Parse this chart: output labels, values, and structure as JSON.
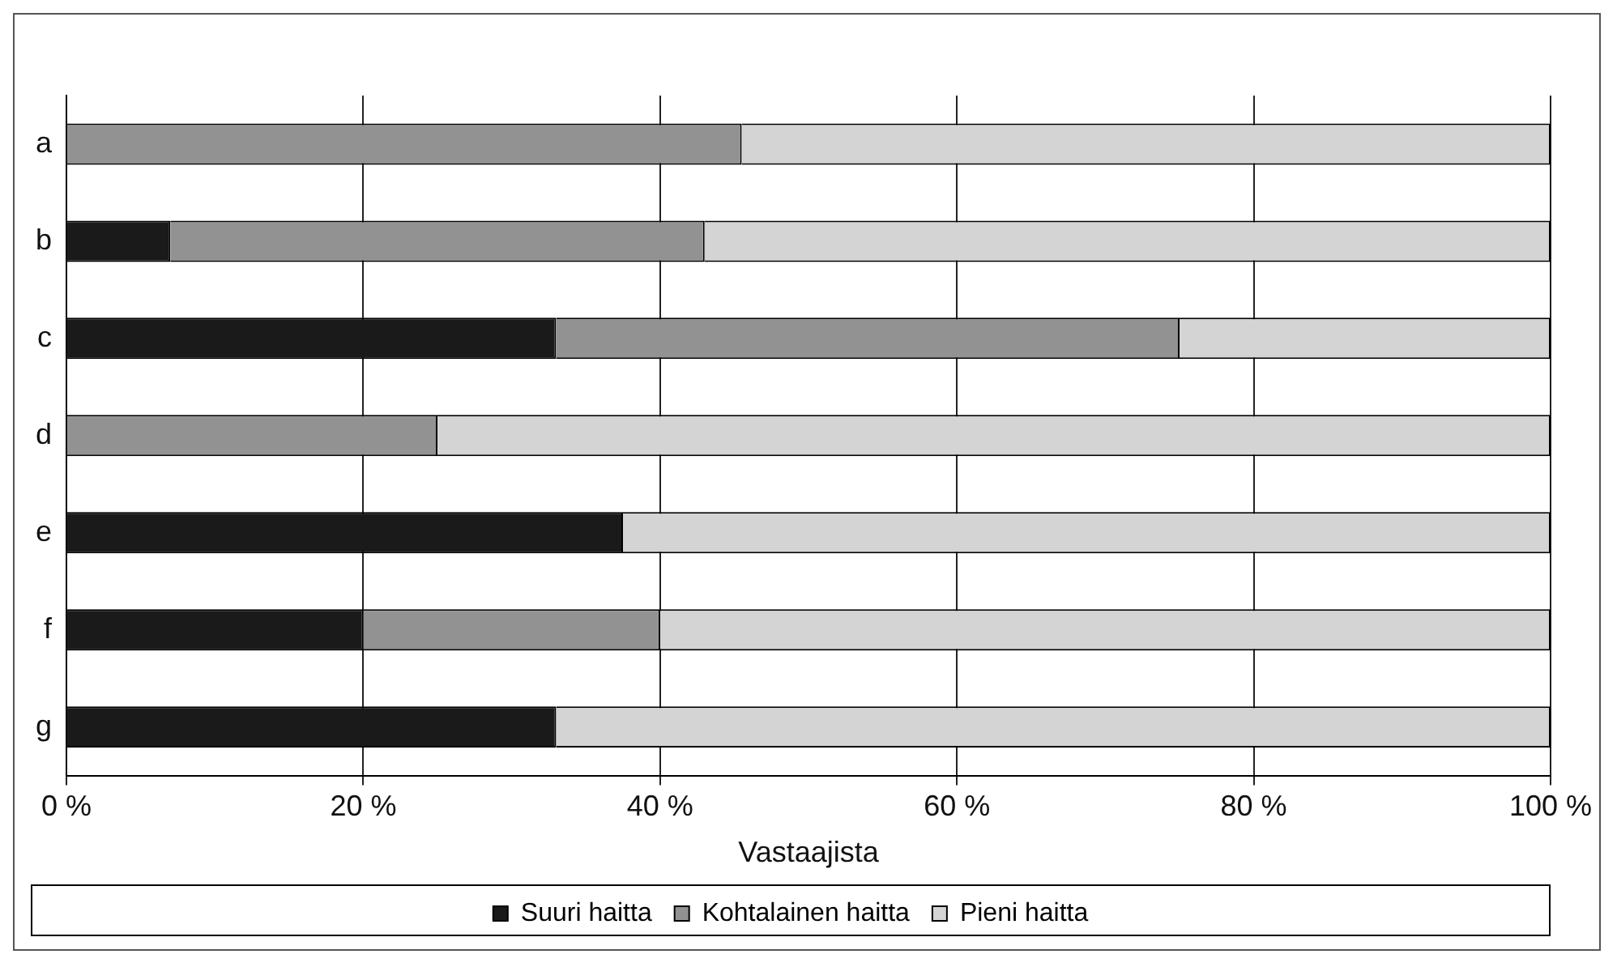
{
  "chart_data": {
    "type": "bar",
    "orientation": "horizontal",
    "stacked": true,
    "xlabel": "Vastaajista",
    "categories": [
      "a",
      "b",
      "c",
      "d",
      "e",
      "f",
      "g"
    ],
    "series": [
      {
        "name": "Suuri haitta",
        "color": "#1a1a1a",
        "values": [
          0,
          7,
          33,
          0,
          37.5,
          20,
          33
        ]
      },
      {
        "name": "Kohtalainen haitta",
        "color": "#929292",
        "values": [
          45.5,
          36,
          42,
          25,
          0,
          20,
          0
        ]
      },
      {
        "name": "Pieni haitta",
        "color": "#d4d4d4",
        "values": [
          54.5,
          57,
          25,
          75,
          62.5,
          60,
          67
        ]
      }
    ],
    "xlim": [
      0,
      100
    ],
    "xticks": [
      {
        "value": 0,
        "label": "0 %"
      },
      {
        "value": 20,
        "label": "20 %"
      },
      {
        "value": 40,
        "label": "40 %"
      },
      {
        "value": 60,
        "label": "60 %"
      },
      {
        "value": 80,
        "label": "80 %"
      },
      {
        "value": 100,
        "label": "100 %"
      }
    ],
    "grid": "x",
    "legend": "bottom"
  }
}
